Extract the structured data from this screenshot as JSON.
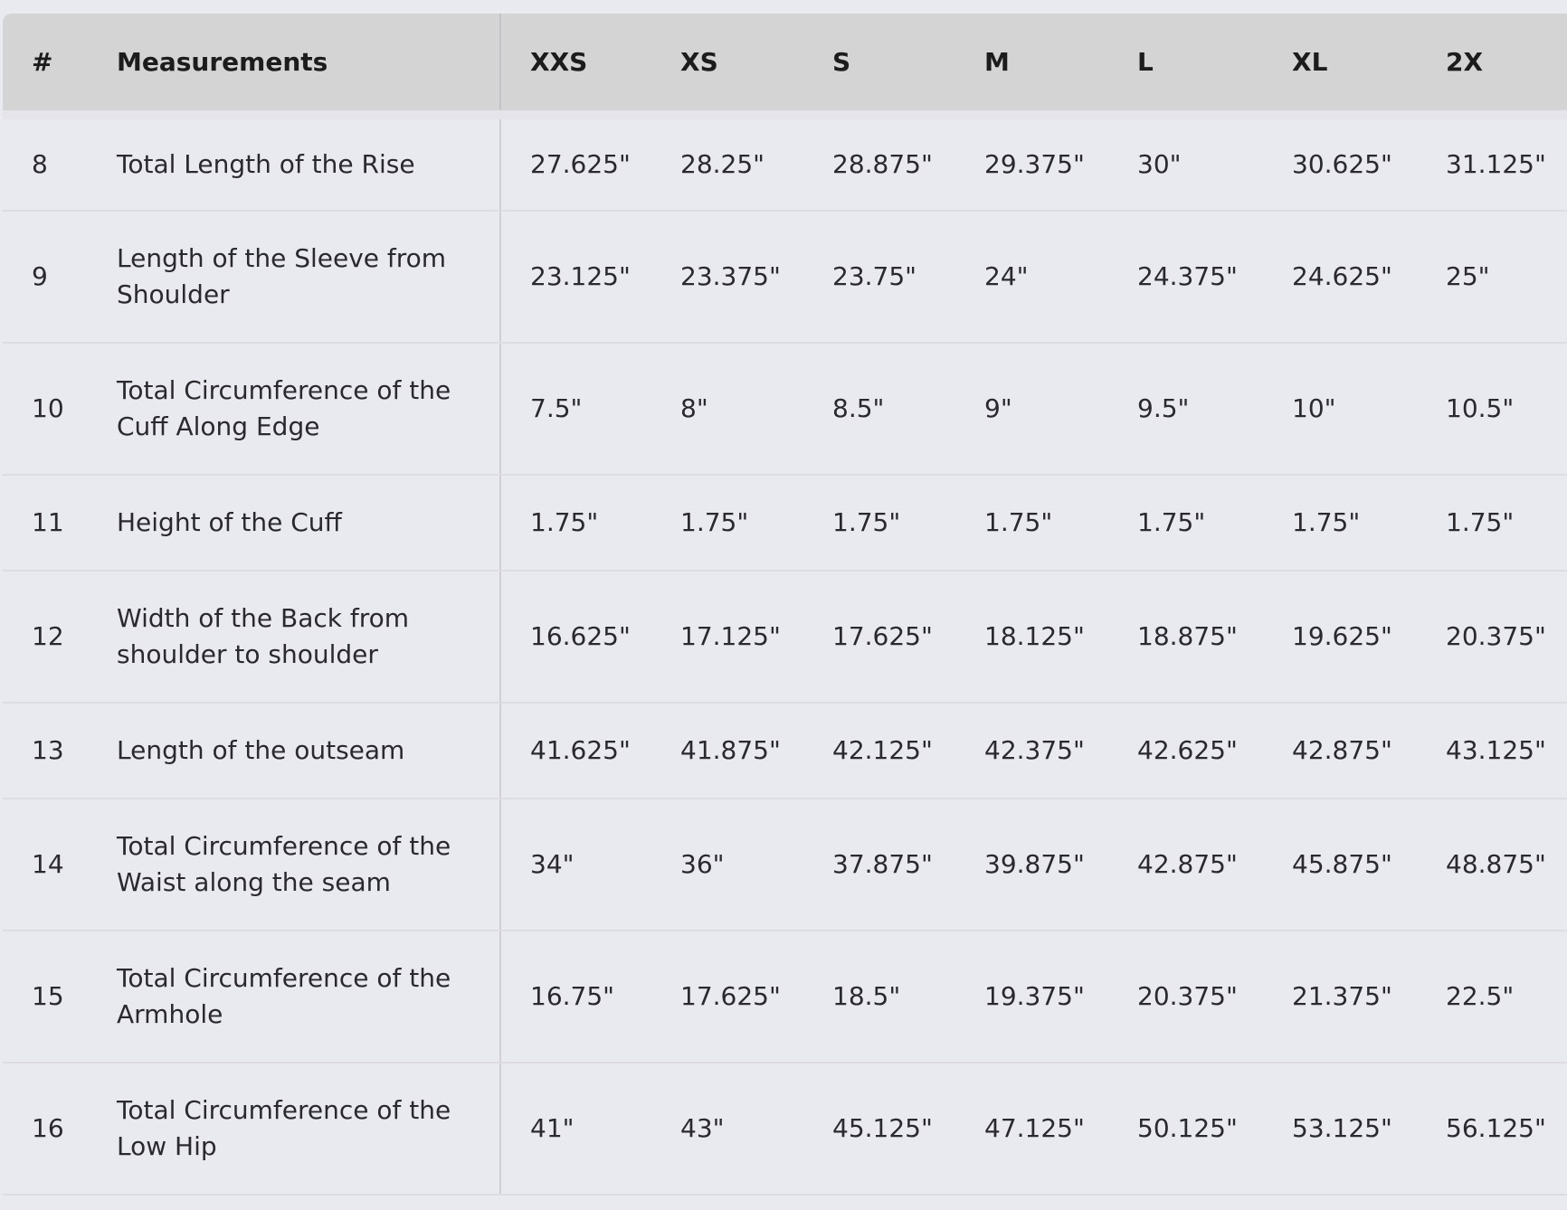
{
  "table": {
    "headers": {
      "number": "#",
      "measurement": "Measurements",
      "sizes": [
        "XXS",
        "XS",
        "S",
        "M",
        "L",
        "XL",
        "2X"
      ]
    },
    "rows": [
      {
        "num": "8",
        "label": "Total Length of the Rise",
        "values": [
          "27.625\"",
          "28.25\"",
          "28.875\"",
          "29.375\"",
          "30\"",
          "30.625\"",
          "31.125\""
        ]
      },
      {
        "num": "9",
        "label": "Length of the Sleeve from Shoulder",
        "values": [
          "23.125\"",
          "23.375\"",
          "23.75\"",
          "24\"",
          "24.375\"",
          "24.625\"",
          "25\""
        ]
      },
      {
        "num": "10",
        "label": "Total Circumference of the Cuff Along Edge",
        "values": [
          "7.5\"",
          "8\"",
          "8.5\"",
          "9\"",
          "9.5\"",
          "10\"",
          "10.5\""
        ]
      },
      {
        "num": "11",
        "label": "Height of the Cuff",
        "values": [
          "1.75\"",
          "1.75\"",
          "1.75\"",
          "1.75\"",
          "1.75\"",
          "1.75\"",
          "1.75\""
        ]
      },
      {
        "num": "12",
        "label": "Width of the Back from shoulder to shoulder",
        "values": [
          "16.625\"",
          "17.125\"",
          "17.625\"",
          "18.125\"",
          "18.875\"",
          "19.625\"",
          "20.375\""
        ]
      },
      {
        "num": "13",
        "label": "Length of the outseam",
        "values": [
          "41.625\"",
          "41.875\"",
          "42.125\"",
          "42.375\"",
          "42.625\"",
          "42.875\"",
          "43.125\""
        ]
      },
      {
        "num": "14",
        "label": "Total Circumference of the Waist along the seam",
        "values": [
          "34\"",
          "36\"",
          "37.875\"",
          "39.875\"",
          "42.875\"",
          "45.875\"",
          "48.875\""
        ]
      },
      {
        "num": "15",
        "label": "Total Circumference of the Armhole",
        "values": [
          "16.75\"",
          "17.625\"",
          "18.5\"",
          "19.375\"",
          "20.375\"",
          "21.375\"",
          "22.5\""
        ]
      },
      {
        "num": "16",
        "label": "Total Circumference of the Low Hip",
        "values": [
          "41\"",
          "43\"",
          "45.125\"",
          "47.125\"",
          "50.125\"",
          "53.125\"",
          "56.125\""
        ]
      }
    ]
  }
}
